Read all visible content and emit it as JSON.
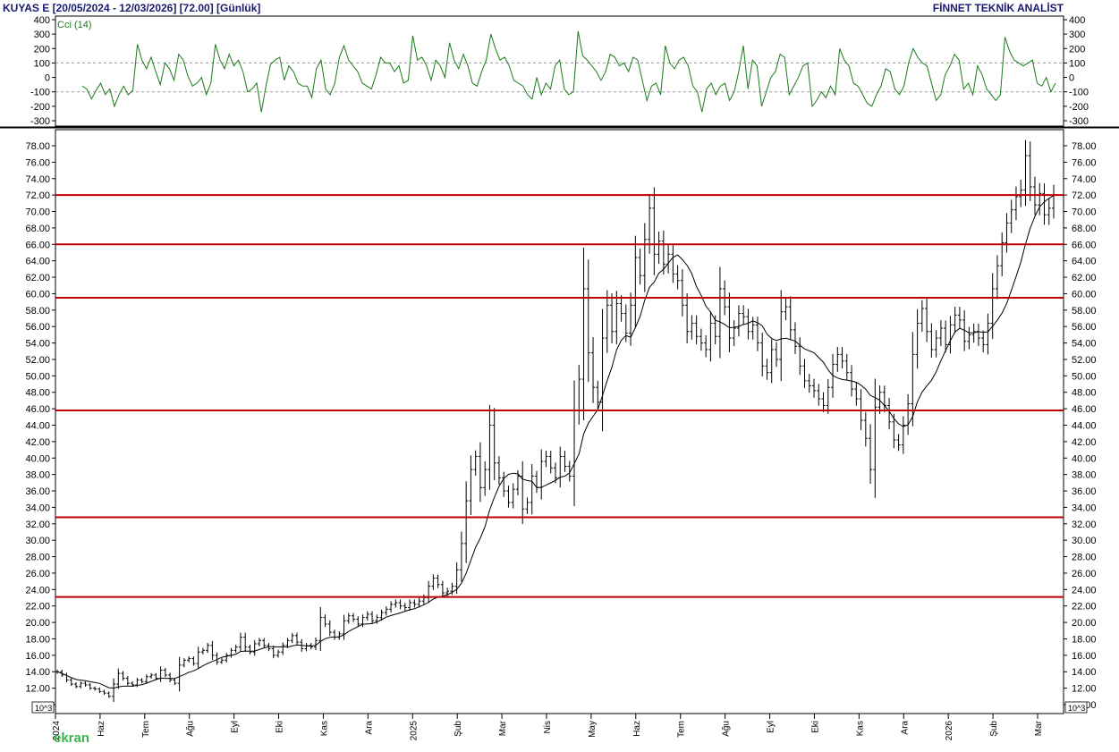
{
  "header": {
    "symbol_range": "KUYAS E  [20/05/2024 - 12/03/2026]  [72.00]  [Günlük]",
    "vendor": "FİNNET TEKNİK ANALİST"
  },
  "watermark": "ekran",
  "chart_data": [
    {
      "type": "line",
      "panel": "indicator",
      "legend": "Cci (14)",
      "ylim": [
        -300,
        400
      ],
      "y_ticks": [
        "400",
        "300",
        "200",
        "100",
        "0",
        "-100",
        "-200",
        "-300"
      ],
      "reference_lines": [
        100,
        -100
      ],
      "line_color": "#1a7a1a",
      "grid": false,
      "values": [
        -60,
        -80,
        -150,
        -90,
        -40,
        -120,
        -80,
        -200,
        -120,
        -60,
        -120,
        -90,
        230,
        120,
        60,
        140,
        40,
        -50,
        100,
        60,
        -20,
        160,
        120,
        10,
        -60,
        -40,
        0,
        -120,
        -40,
        230,
        120,
        60,
        160,
        80,
        120,
        40,
        -100,
        -80,
        -40,
        -240,
        -60,
        90,
        120,
        140,
        -20,
        80,
        40,
        -40,
        -60,
        -60,
        -140,
        60,
        120,
        -80,
        -120,
        -40,
        140,
        220,
        120,
        80,
        40,
        -40,
        -60,
        -80,
        20,
        140,
        100,
        100,
        40,
        80,
        -40,
        -20,
        290,
        120,
        140,
        80,
        -20,
        120,
        80,
        0,
        240,
        120,
        60,
        160,
        80,
        -40,
        -60,
        40,
        120,
        300,
        200,
        120,
        140,
        80,
        -20,
        -40,
        -60,
        -120,
        -150,
        0,
        -120,
        -40,
        -80,
        80,
        120,
        -80,
        -120,
        -100,
        320,
        150,
        120,
        80,
        40,
        -20,
        40,
        160,
        140,
        80,
        100,
        40,
        140,
        120,
        -20,
        -160,
        -60,
        -40,
        -120,
        220,
        100,
        60,
        120,
        140,
        80,
        -60,
        -100,
        -240,
        -80,
        -40,
        -120,
        -60,
        -40,
        -160,
        -100,
        40,
        220,
        -80,
        120,
        80,
        -200,
        -100,
        0,
        40,
        160,
        140,
        -120,
        -60,
        0,
        80,
        100,
        -200,
        -160,
        -100,
        -140,
        -60,
        -120,
        200,
        120,
        80,
        -40,
        -60,
        -120,
        -180,
        -200,
        -120,
        -60,
        60,
        40,
        -80,
        -120,
        -60,
        100,
        200,
        140,
        100,
        80,
        -40,
        -160,
        -120,
        20,
        80,
        160,
        120,
        -80,
        -40,
        -120,
        80,
        20,
        -80,
        -120,
        -160,
        -120,
        280,
        180,
        120,
        100,
        80,
        100,
        120,
        -40,
        -60,
        0,
        -100,
        -40
      ]
    },
    {
      "type": "ohlc",
      "panel": "price",
      "ylim": [
        9,
        80
      ],
      "y_ticks": [
        "78.00",
        "76.00",
        "74.00",
        "72.00",
        "70.00",
        "68.00",
        "66.00",
        "64.00",
        "62.00",
        "60.00",
        "58.00",
        "56.00",
        "54.00",
        "52.00",
        "50.00",
        "48.00",
        "46.00",
        "44.00",
        "42.00",
        "40.00",
        "38.00",
        "36.00",
        "34.00",
        "32.00",
        "30.00",
        "28.00",
        "26.00",
        "24.00",
        "22.00",
        "20.00",
        "18.00",
        "16.00",
        "14.00",
        "12.00",
        "10.00"
      ],
      "scale_note": "10^3",
      "x_ticks": [
        "2024",
        "Haz",
        "Tem",
        "Ağu",
        "Eyl",
        "Eki",
        "Kas",
        "Ara",
        "2025",
        "Şub",
        "Mar",
        "Nis",
        "May",
        "Haz",
        "Tem",
        "Ağu",
        "Eyl",
        "Eki",
        "Kas",
        "Ara",
        "2026",
        "Şub",
        "Mar"
      ],
      "horizontal_levels": [
        72.0,
        66.0,
        59.5,
        45.8,
        32.8,
        23.1
      ],
      "level_color": "#c00000",
      "closes": [
        14.0,
        13.6,
        13.0,
        12.5,
        12.2,
        12.6,
        12.4,
        12.0,
        11.9,
        11.6,
        11.4,
        11.0,
        12.5,
        13.8,
        13.2,
        12.6,
        12.4,
        13.0,
        12.8,
        13.4,
        13.6,
        13.2,
        14.2,
        13.6,
        13.0,
        12.6,
        14.8,
        15.4,
        15.6,
        15.0,
        16.4,
        16.6,
        17.2,
        16.0,
        15.2,
        15.4,
        16.0,
        16.6,
        17.0,
        18.2,
        17.0,
        16.4,
        17.4,
        17.8,
        17.2,
        16.8,
        16.0,
        16.4,
        17.2,
        17.8,
        18.4,
        17.6,
        16.8,
        17.2,
        17.0,
        17.8,
        20.6,
        19.8,
        18.8,
        18.2,
        18.6,
        20.2,
        20.8,
        20.4,
        19.8,
        20.6,
        21.0,
        20.2,
        20.6,
        21.2,
        21.6,
        22.2,
        22.4,
        22.0,
        21.8,
        22.4,
        22.2,
        22.6,
        23.0,
        24.4,
        25.4,
        24.6,
        23.6,
        23.8,
        24.4,
        26.4,
        29.6,
        34.8,
        38.6,
        40.2,
        36.4,
        38.6,
        44.0,
        39.4,
        37.6,
        36.0,
        34.6,
        36.2,
        37.8,
        33.8,
        34.6,
        37.8,
        36.4,
        39.6,
        40.2,
        38.8,
        37.6,
        40.2,
        39.0,
        37.8,
        45.8,
        49.6,
        60.6,
        52.8,
        48.6,
        46.8,
        54.6,
        58.6,
        55.4,
        58.8,
        57.6,
        55.2,
        58.6,
        64.4,
        62.2,
        66.6,
        70.4,
        64.8,
        66.4,
        63.6,
        64.8,
        62.4,
        61.6,
        58.6,
        55.4,
        56.4,
        54.8,
        54.0,
        53.2,
        56.4,
        54.8,
        60.6,
        58.4,
        54.6,
        55.8,
        57.6,
        57.2,
        55.4,
        56.2,
        54.0,
        51.2,
        50.4,
        53.2,
        52.0,
        57.8,
        58.4,
        55.6,
        53.6,
        51.2,
        49.4,
        48.8,
        48.2,
        47.2,
        46.4,
        48.6,
        51.4,
        52.6,
        51.8,
        50.4,
        48.4,
        47.2,
        44.6,
        42.4,
        38.6,
        46.2,
        48.0,
        46.4,
        44.4,
        42.2,
        41.6,
        44.0,
        46.6,
        52.6,
        56.4,
        58.2,
        55.4,
        53.2,
        54.6,
        55.8,
        53.8,
        56.2,
        57.4,
        56.8,
        54.2,
        55.0,
        55.4,
        54.6,
        53.8,
        56.4,
        60.6,
        63.4,
        66.2,
        68.6,
        70.2,
        71.8,
        72.6,
        76.8,
        73.0,
        70.8,
        72.2,
        69.6,
        70.4,
        72.0
      ]
    }
  ]
}
